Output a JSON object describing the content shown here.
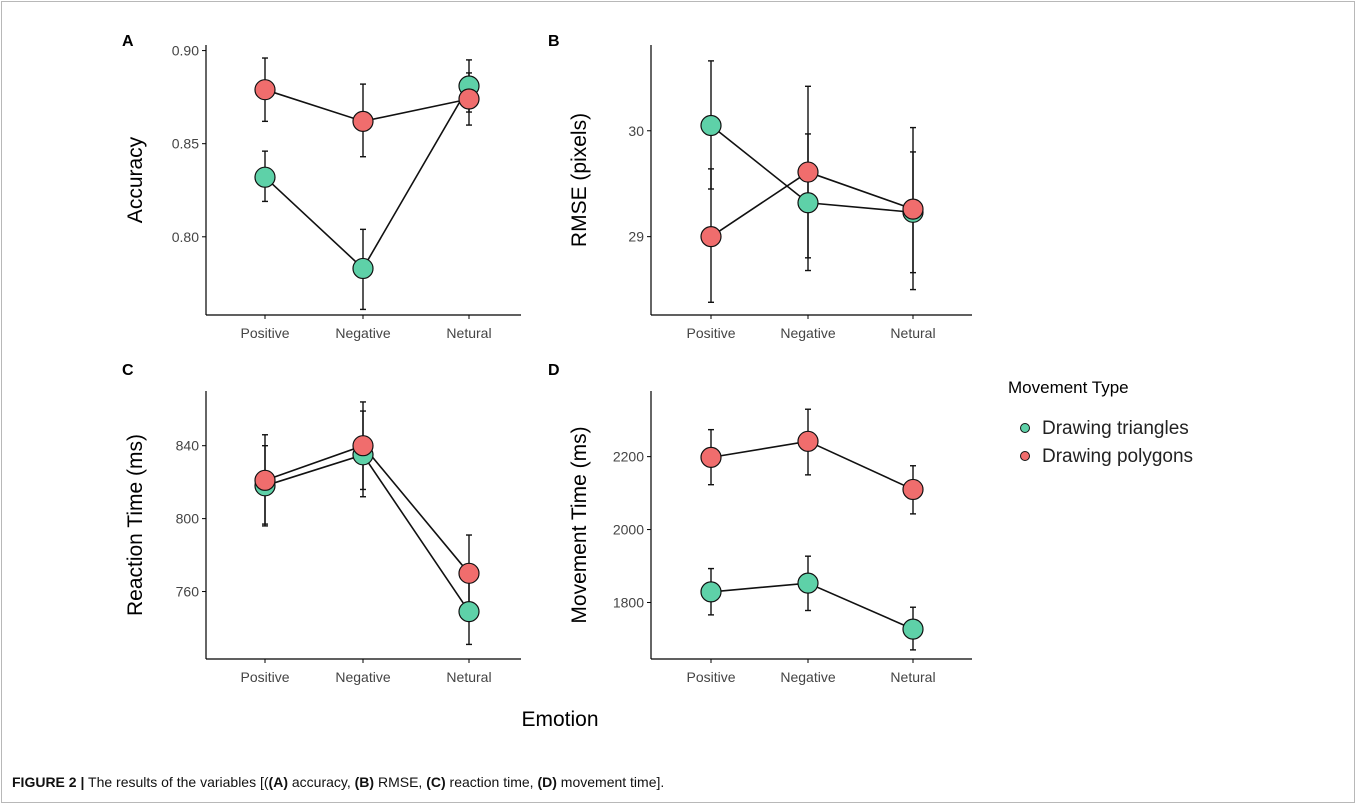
{
  "figure": {
    "x_axis_title": "Emotion",
    "caption": {
      "label": "FIGURE 2 |",
      "parts": [
        {
          "text": " The results of the variables [(",
          "bold": false
        },
        {
          "text": "(A)",
          "bold": true
        },
        {
          "text": " accuracy, ",
          "bold": false
        },
        {
          "text": "(B)",
          "bold": true
        },
        {
          "text": " RMSE, ",
          "bold": false
        },
        {
          "text": "(C)",
          "bold": true
        },
        {
          "text": " reaction time, ",
          "bold": false
        },
        {
          "text": "(D)",
          "bold": true
        },
        {
          "text": " movement time].",
          "bold": false
        }
      ]
    },
    "legend": {
      "title": "Movement Type",
      "placement": "right",
      "items": [
        {
          "label": "Drawing triangles",
          "color": "#5ed1a8"
        },
        {
          "label": "Drawing polygons",
          "color": "#f06d6d"
        }
      ]
    }
  },
  "chart_data": [
    {
      "panel": "A",
      "type": "line",
      "ylabel": "Accuracy",
      "categories": [
        "Positive",
        "Negative",
        "Netural"
      ],
      "ylim": [
        0.758,
        0.903
      ],
      "yticks": [
        "0.80",
        "0.85",
        "0.90"
      ],
      "ytick_values": [
        0.8,
        0.85,
        0.9
      ],
      "series": [
        {
          "name": "Drawing triangles",
          "color": "#5ed1a8",
          "values": [
            0.832,
            0.783,
            0.881
          ],
          "err_low": [
            0.819,
            0.761,
            0.867
          ],
          "err_high": [
            0.846,
            0.804,
            0.895
          ]
        },
        {
          "name": "Drawing polygons",
          "color": "#f06d6d",
          "values": [
            0.879,
            0.862,
            0.874
          ],
          "err_low": [
            0.862,
            0.843,
            0.86
          ],
          "err_high": [
            0.896,
            0.882,
            0.888
          ]
        }
      ]
    },
    {
      "panel": "B",
      "type": "line",
      "ylabel": "RMSE (pixels)",
      "categories": [
        "Positive",
        "Negative",
        "Netural"
      ],
      "ylim": [
        28.26,
        30.81
      ],
      "yticks": [
        "29",
        "30"
      ],
      "ytick_values": [
        29,
        30
      ],
      "series": [
        {
          "name": "Drawing triangles",
          "color": "#5ed1a8",
          "values": [
            30.05,
            29.32,
            29.23
          ],
          "err_low": [
            29.45,
            28.68,
            28.66
          ],
          "err_high": [
            30.66,
            29.97,
            29.8
          ]
        },
        {
          "name": "Drawing polygons",
          "color": "#f06d6d",
          "values": [
            29.0,
            29.61,
            29.26
          ],
          "err_low": [
            28.38,
            28.8,
            28.5
          ],
          "err_high": [
            29.64,
            30.42,
            30.03
          ]
        }
      ]
    },
    {
      "panel": "C",
      "type": "line",
      "ylabel": "Reaction Time (ms)",
      "categories": [
        "Positive",
        "Negative",
        "Netural"
      ],
      "ylim": [
        723,
        870
      ],
      "yticks": [
        "760",
        "800",
        "840"
      ],
      "ytick_values": [
        760,
        800,
        840
      ],
      "series": [
        {
          "name": "Drawing triangles",
          "color": "#5ed1a8",
          "values": [
            818,
            835,
            749
          ],
          "err_low": [
            796,
            812,
            731
          ],
          "err_high": [
            840,
            859,
            769
          ]
        },
        {
          "name": "Drawing polygons",
          "color": "#f06d6d",
          "values": [
            821,
            840,
            770
          ],
          "err_low": [
            797,
            816,
            750
          ],
          "err_high": [
            846,
            864,
            791
          ]
        }
      ]
    },
    {
      "panel": "D",
      "type": "line",
      "ylabel": "Movement Time (ms)",
      "categories": [
        "Positive",
        "Negative",
        "Netural"
      ],
      "ylim": [
        1645,
        2380
      ],
      "yticks": [
        "1800",
        "2000",
        "2200"
      ],
      "ytick_values": [
        1800,
        2000,
        2200
      ],
      "series": [
        {
          "name": "Drawing triangles",
          "color": "#5ed1a8",
          "values": [
            1829,
            1853,
            1727
          ],
          "err_low": [
            1766,
            1778,
            1670
          ],
          "err_high": [
            1893,
            1927,
            1787
          ]
        },
        {
          "name": "Drawing polygons",
          "color": "#f06d6d",
          "values": [
            2198,
            2242,
            2110
          ],
          "err_low": [
            2123,
            2150,
            2043
          ],
          "err_high": [
            2274,
            2330,
            2175
          ]
        }
      ]
    }
  ]
}
